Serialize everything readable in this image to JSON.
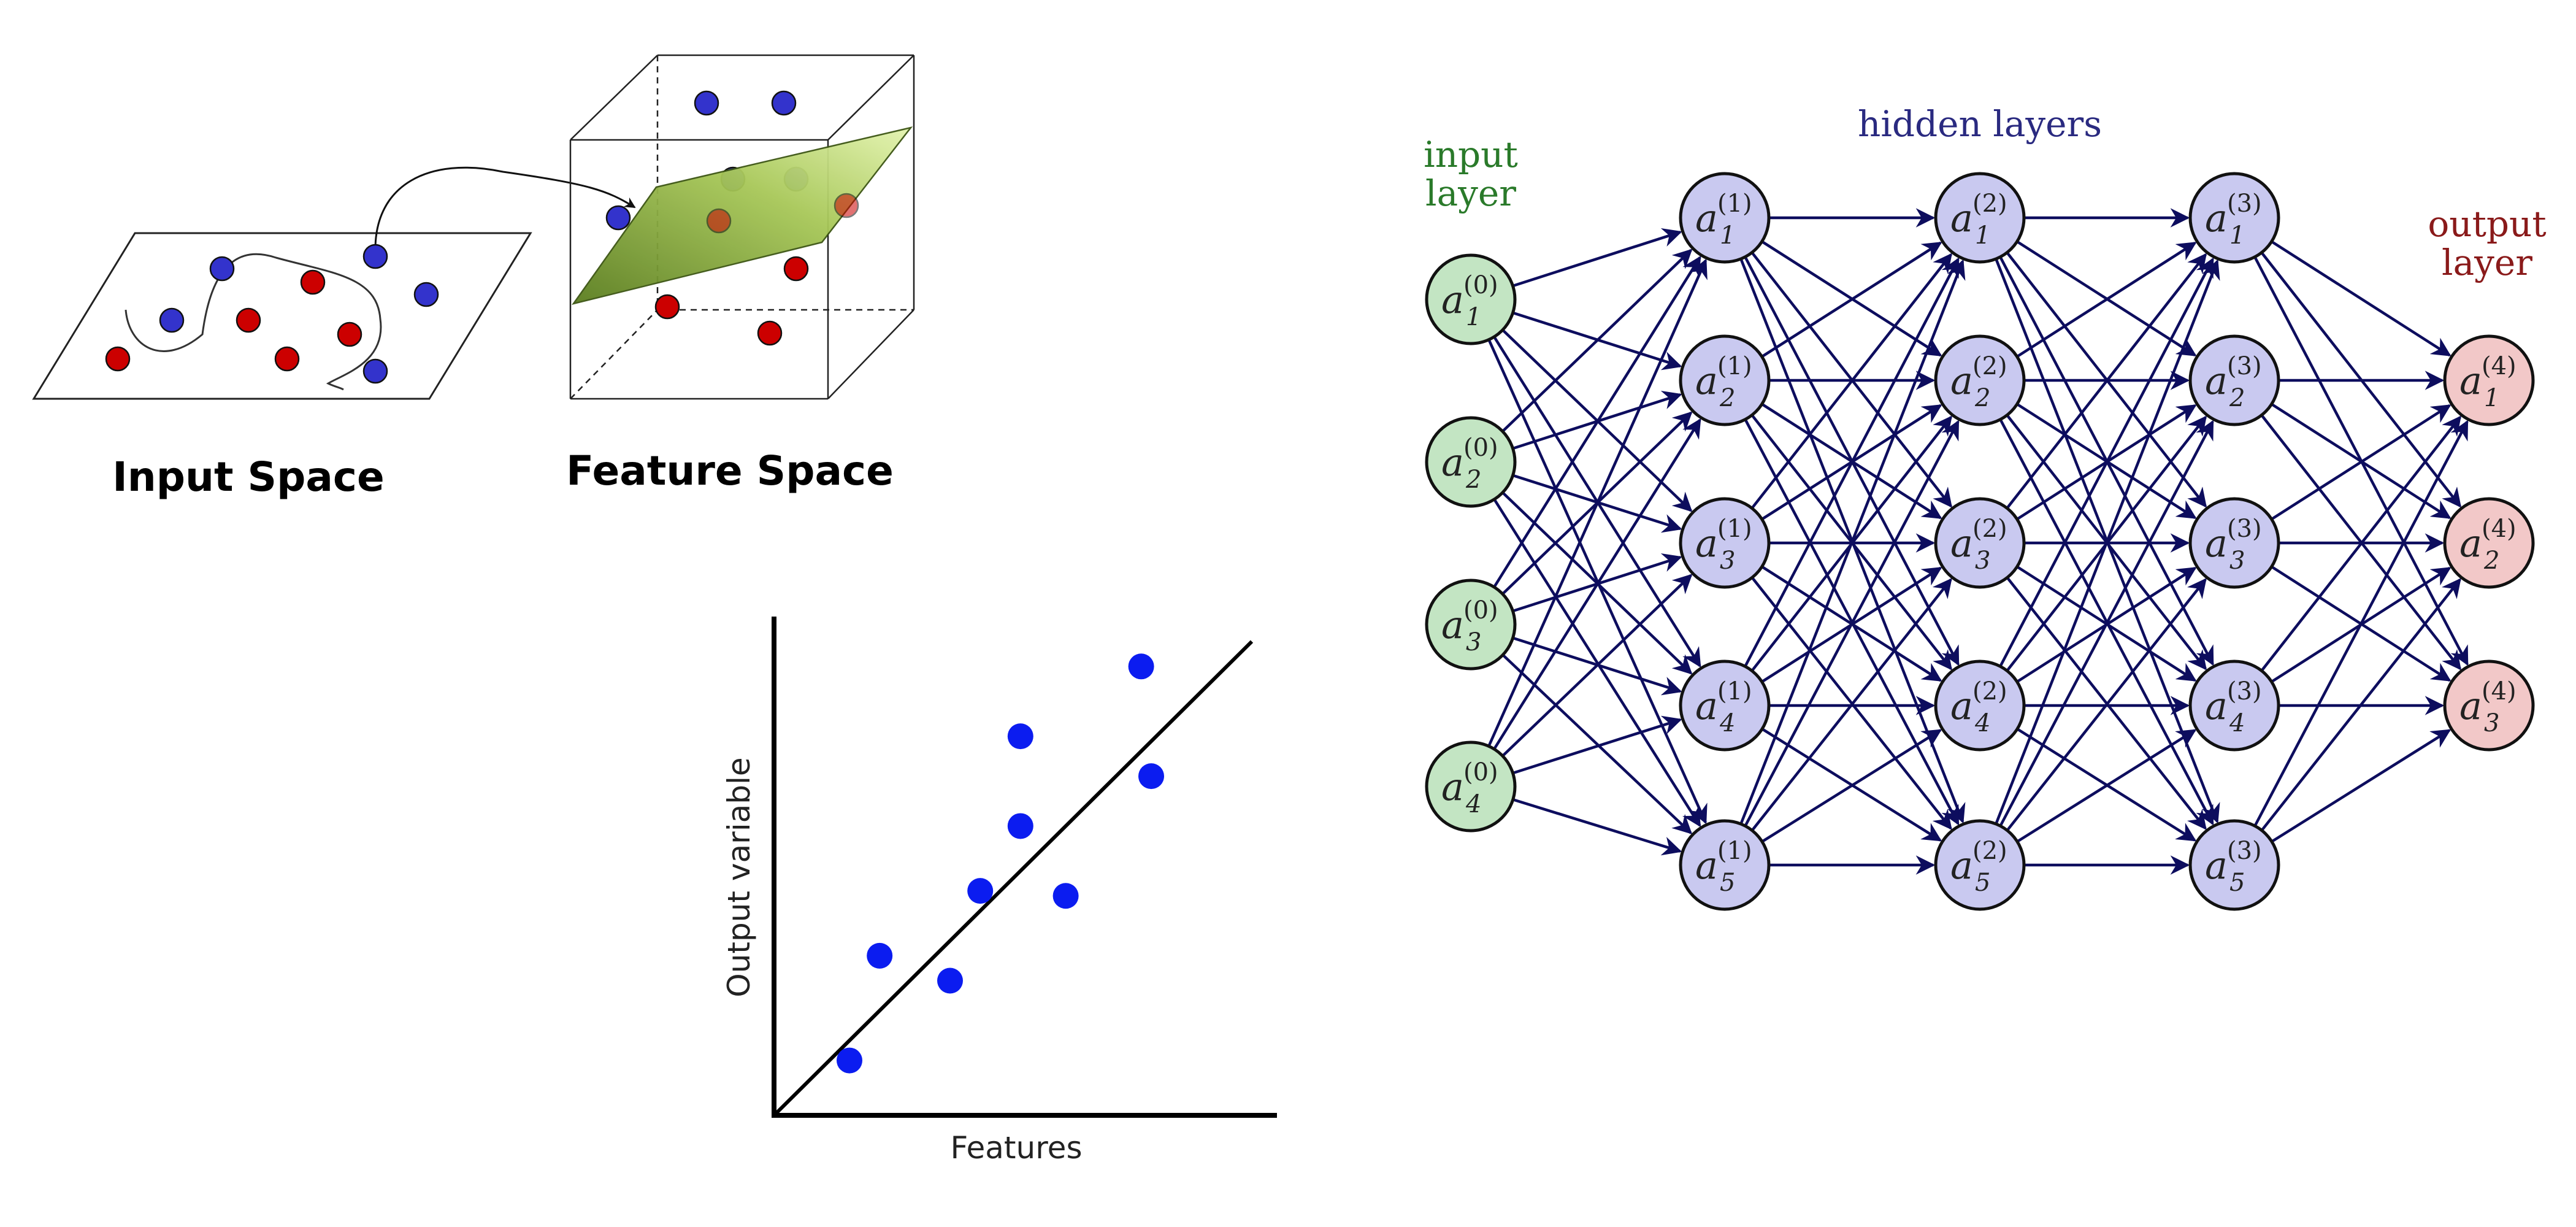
{
  "svm_panel": {
    "input_space_label": "Input Space",
    "feature_space_label": "Feature Space",
    "colors": {
      "class_a": "#3333cc",
      "class_b": "#cc0000",
      "plane": "#9abb44"
    }
  },
  "regression_panel": {
    "xlabel": "Features",
    "ylabel": "Output variable",
    "point_color": "#0b1cf0",
    "chart_data": {
      "type": "scatter",
      "x": [
        1.5,
        2.1,
        3.5,
        4.1,
        4.9,
        4.9,
        5.8,
        7.3,
        7.5
      ],
      "y": [
        1.1,
        3.2,
        2.7,
        4.5,
        5.8,
        7.6,
        4.4,
        9.0,
        6.8
      ],
      "trend_line": {
        "x": [
          0,
          9.5
        ],
        "y": [
          0,
          9.5
        ]
      },
      "xlim": [
        0,
        10
      ],
      "ylim": [
        0,
        10
      ],
      "grid": false
    }
  },
  "nn_panel": {
    "input_layer_label": [
      "input",
      "layer"
    ],
    "hidden_layers_label": "hidden layers",
    "output_layer_label": [
      "output",
      "layer"
    ],
    "colors": {
      "input_fill": "#c3e5c3",
      "input_text": "#2a7a2a",
      "hidden_fill": "#c9c9f0",
      "hidden_text": "#2a2a80",
      "output_fill": "#f2c8c8",
      "output_text": "#8a1a1a",
      "edge": "#0d0d5e"
    },
    "layers": [
      {
        "layer": "0",
        "nodes": [
          "1",
          "2",
          "3",
          "4"
        ]
      },
      {
        "layer": "1",
        "nodes": [
          "1",
          "2",
          "3",
          "4",
          "5"
        ]
      },
      {
        "layer": "2",
        "nodes": [
          "1",
          "2",
          "3",
          "4",
          "5"
        ]
      },
      {
        "layer": "3",
        "nodes": [
          "1",
          "2",
          "3",
          "4",
          "5"
        ]
      },
      {
        "layer": "4",
        "nodes": [
          "1",
          "2",
          "3"
        ]
      }
    ],
    "node_symbol": "a"
  }
}
